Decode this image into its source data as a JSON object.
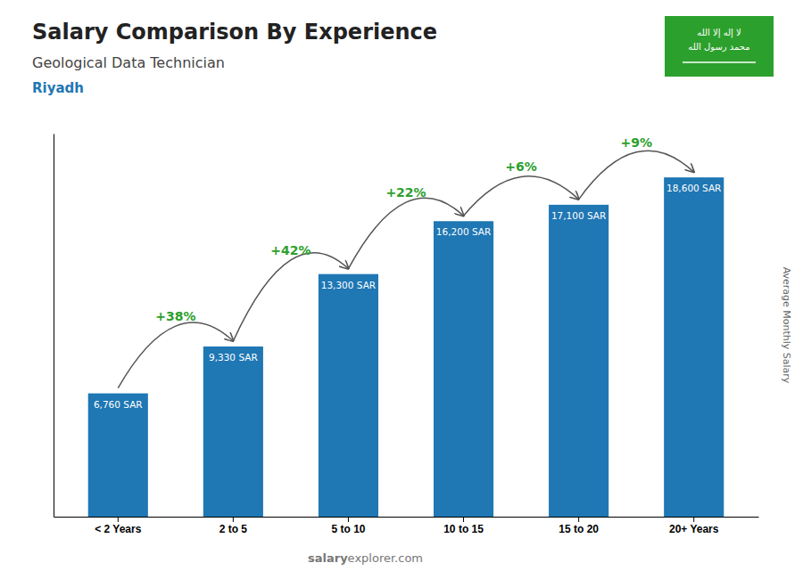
{
  "chart_data": {
    "type": "bar",
    "title": "Salary Comparison By Experience",
    "subtitle": "Geological Data Technician",
    "annotations": [
      "Riyadh"
    ],
    "arrow_labels": [
      "+38%",
      "+42%",
      "+22%",
      "+6%",
      "+9%"
    ],
    "ylabel": "Average Monthly Salary",
    "watermark": [
      "salary",
      "explorer.com"
    ],
    "flag_text": [
      "لا إله إلا الله",
      "محمد رسول الله"
    ],
    "categories": [
      "< 2 Years",
      "2 to 5",
      "5 to 10",
      "10 to 15",
      "15 to 20",
      "20+ Years"
    ],
    "values": [
      6760,
      9330,
      13300,
      16200,
      17100,
      18600
    ],
    "value_labels": [
      "6,760 SAR",
      "9,330 SAR",
      "13,300 SAR",
      "16,200 SAR",
      "17,100 SAR",
      "18,600 SAR"
    ],
    "data_labels": true,
    "ylim": [
      0,
      21000
    ],
    "tick_labels": "x",
    "grid": false
  }
}
